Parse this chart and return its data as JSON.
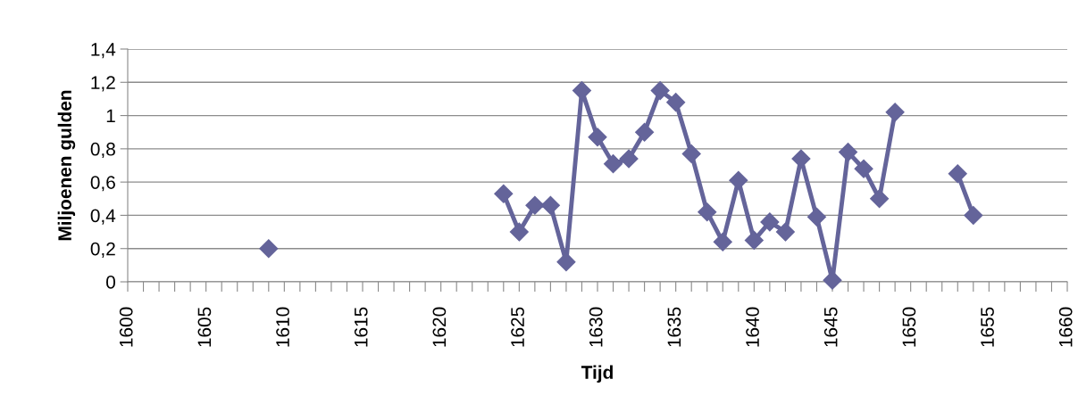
{
  "chart_data": {
    "type": "line",
    "xlabel": "Tijd",
    "ylabel": "Miljoenen gulden",
    "x": [
      1609,
      1610,
      1624,
      1625,
      1626,
      1627,
      1628,
      1629,
      1630,
      1631,
      1632,
      1633,
      1634,
      1635,
      1636,
      1637,
      1638,
      1639,
      1640,
      1641,
      1642,
      1643,
      1644,
      1645,
      1646,
      1647,
      1648,
      1649,
      1650,
      1653,
      1654
    ],
    "series": [
      {
        "color": "#64649a",
        "values": [
          0.2,
          null,
          0.53,
          0.3,
          0.46,
          0.46,
          0.12,
          1.15,
          0.87,
          0.71,
          0.74,
          0.9,
          1.15,
          1.08,
          0.77,
          0.42,
          0.24,
          0.61,
          0.25,
          0.36,
          0.3,
          0.74,
          0.39,
          0.01,
          0.78,
          0.68,
          0.5,
          1.02,
          null,
          0.65,
          0.4
        ]
      }
    ],
    "xlim": [
      1600,
      1660
    ],
    "xticks": [
      1600,
      {
        "value": 1601,
        "label": null
      },
      {
        "value": 1602,
        "label": null
      },
      {
        "value": 1603,
        "label": null
      },
      {
        "value": 1604,
        "label": null
      },
      1605,
      {
        "value": 1606,
        "label": null
      },
      {
        "value": 1607,
        "label": null
      },
      {
        "value": 1608,
        "label": null
      },
      {
        "value": 1609,
        "label": null
      },
      1610,
      {
        "value": 1611,
        "label": null
      },
      {
        "value": 1612,
        "label": null
      },
      {
        "value": 1613,
        "label": null
      },
      {
        "value": 1614,
        "label": null
      },
      1615,
      {
        "value": 1616,
        "label": null
      },
      {
        "value": 1617,
        "label": null
      },
      {
        "value": 1618,
        "label": null
      },
      {
        "value": 1619,
        "label": null
      },
      1620,
      {
        "value": 1621,
        "label": null
      },
      {
        "value": 1622,
        "label": null
      },
      {
        "value": 1623,
        "label": null
      },
      {
        "value": 1624,
        "label": null
      },
      1625,
      {
        "value": 1626,
        "label": null
      },
      {
        "value": 1627,
        "label": null
      },
      {
        "value": 1628,
        "label": null
      },
      {
        "value": 1629,
        "label": null
      },
      1630,
      {
        "value": 1631,
        "label": null
      },
      {
        "value": 1632,
        "label": null
      },
      {
        "value": 1633,
        "label": null
      },
      {
        "value": 1634,
        "label": null
      },
      1635,
      {
        "value": 1636,
        "label": null
      },
      {
        "value": 1637,
        "label": null
      },
      {
        "value": 1638,
        "label": null
      },
      {
        "value": 1639,
        "label": null
      },
      1640,
      {
        "value": 1641,
        "label": null
      },
      {
        "value": 1642,
        "label": null
      },
      {
        "value": 1643,
        "label": null
      },
      {
        "value": 1644,
        "label": null
      },
      1645,
      {
        "value": 1646,
        "label": null
      },
      {
        "value": 1647,
        "label": null
      },
      {
        "value": 1648,
        "label": null
      },
      {
        "value": 1649,
        "label": null
      },
      1650,
      {
        "value": 1651,
        "label": null
      },
      {
        "value": 1652,
        "label": null
      },
      {
        "value": 1653,
        "label": null
      },
      {
        "value": 1654,
        "label": null
      },
      1655,
      {
        "value": 1656,
        "label": null
      },
      {
        "value": 1657,
        "label": null
      },
      {
        "value": 1658,
        "label": null
      },
      {
        "value": 1659,
        "label": null
      },
      1660
    ],
    "ylim": [
      0,
      1.4
    ],
    "yticks": [
      0,
      {
        "value": 0.2,
        "label": "0,2"
      },
      {
        "value": 0.4,
        "label": "0,4"
      },
      {
        "value": 0.6,
        "label": "0,6"
      },
      {
        "value": 0.8,
        "label": "0,8"
      },
      1,
      {
        "value": 1.2,
        "label": "1,2"
      },
      {
        "value": 1.4,
        "label": "1,4"
      }
    ],
    "grid": "y",
    "marker": "diamond",
    "line_style": "solid"
  }
}
